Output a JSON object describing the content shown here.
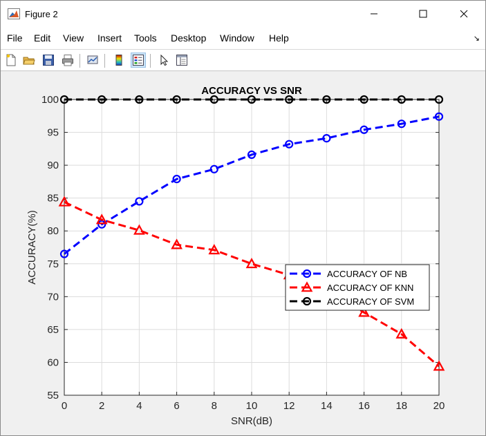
{
  "window": {
    "title": "Figure 2",
    "controls": [
      "minimize",
      "maximize",
      "close"
    ]
  },
  "menu": {
    "items": [
      "File",
      "Edit",
      "View",
      "Insert",
      "Tools",
      "Desktop",
      "Window",
      "Help"
    ],
    "overflow_glyph": "↘"
  },
  "toolbar": {
    "buttons": [
      {
        "name": "new-figure-icon",
        "active": false
      },
      {
        "name": "open-file-icon",
        "active": false
      },
      {
        "name": "save-icon",
        "active": false
      },
      {
        "name": "print-icon",
        "active": false
      },
      {
        "name": "link-plot-icon",
        "active": false
      },
      {
        "name": "colorbar-icon",
        "active": false
      },
      {
        "name": "legend-icon",
        "active": true
      },
      {
        "name": "edit-plot-pointer-icon",
        "active": false
      },
      {
        "name": "property-inspector-icon",
        "active": false
      }
    ]
  },
  "chart_data": {
    "type": "line",
    "title": "ACCURACY VS SNR",
    "xlabel": "SNR(dB)",
    "ylabel": "ACCURACY(%)",
    "xlim": [
      0,
      20
    ],
    "ylim": [
      55,
      100
    ],
    "xticks": [
      0,
      2,
      4,
      6,
      8,
      10,
      12,
      14,
      16,
      18,
      20
    ],
    "yticks": [
      55,
      60,
      65,
      70,
      75,
      80,
      85,
      90,
      95,
      100
    ],
    "grid": true,
    "legend_position": "right-middle",
    "x": [
      0,
      2,
      4,
      6,
      8,
      10,
      12,
      14,
      16,
      18,
      20
    ],
    "series": [
      {
        "name": "ACCURACY OF NB",
        "color": "#0000ff",
        "marker": "circle",
        "values": [
          76.5,
          81.0,
          84.5,
          87.9,
          89.4,
          91.6,
          93.2,
          94.1,
          95.4,
          96.3,
          97.4
        ]
      },
      {
        "name": "ACCURACY OF KNN",
        "color": "#ff0000",
        "marker": "triangle",
        "values": [
          84.4,
          81.7,
          80.1,
          77.9,
          77.1,
          75.0,
          73.3,
          71.1,
          67.6,
          64.3,
          59.4
        ]
      },
      {
        "name": "ACCURACY OF SVM",
        "color": "#000000",
        "marker": "circle",
        "values": [
          100,
          100,
          100,
          100,
          100,
          100,
          100,
          100,
          100,
          100,
          100
        ]
      }
    ]
  }
}
